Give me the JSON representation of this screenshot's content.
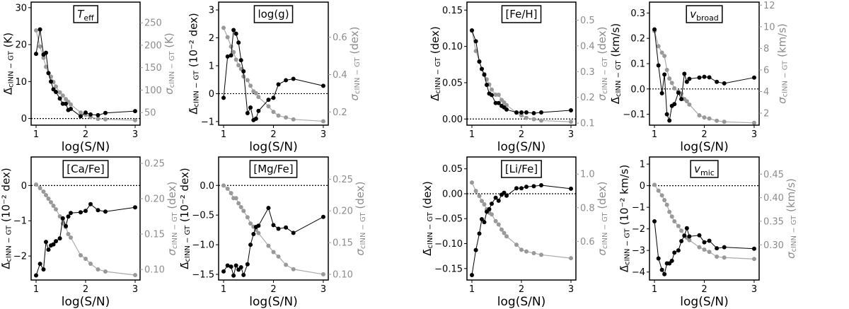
{
  "colors": {
    "primary": "#000000",
    "secondary": "#999999",
    "secondary_text": "#8c8c8c"
  },
  "chart_data": [
    {
      "type": "line",
      "title": {
        "text": "T",
        "sub": "eff",
        "italic": true
      },
      "xlabel": "log(S/N)",
      "xlim": [
        0.9,
        3.1
      ],
      "xticks": [
        1,
        2,
        3
      ],
      "ylabel_left": {
        "sym": "Δ̄",
        "sub": "cINN − GT",
        "unit": "(K)"
      },
      "ylabel_right": {
        "sym": "σ",
        "sub": "cINN − GT",
        "unit": "(K)"
      },
      "ylim_left": [
        -1.8,
        31.5
      ],
      "yticks_left": [
        0,
        10,
        20,
        30
      ],
      "ylim_right": [
        22,
        296
      ],
      "yticks_right": [
        50,
        100,
        150,
        200,
        250
      ],
      "zero_line": true,
      "grid": false,
      "x": [
        1,
        1.08,
        1.15,
        1.2,
        1.25,
        1.3,
        1.35,
        1.4,
        1.48,
        1.54,
        1.6,
        1.65,
        1.7,
        1.9,
        2,
        2.1,
        2.25,
        2.4,
        3
      ],
      "mean_bias": [
        17.5,
        24.1,
        17.3,
        17.8,
        12.3,
        10,
        7.9,
        7.2,
        5.4,
        4.0,
        4.0,
        2.3,
        2.6,
        0.6,
        1.6,
        1.1,
        0.9,
        1.5,
        2.0
      ],
      "sigma": [
        233,
        197,
        172,
        152,
        138,
        130,
        118,
        108,
        95,
        88,
        80,
        74,
        68,
        50,
        45,
        40,
        36,
        35,
        33
      ]
    },
    {
      "type": "line",
      "title": {
        "text": "log(g)",
        "sub": "",
        "italic": false
      },
      "xlabel": "log(S/N)",
      "xlim": [
        0.9,
        3.1
      ],
      "xticks": [
        1,
        2,
        3
      ],
      "ylabel_left": {
        "sym": "Δ̄",
        "sub": "cINN − GT",
        "unit": "(10⁻² dex)"
      },
      "ylabel_right": {
        "sym": "σ",
        "sub": "cINN − GT",
        "unit": "(dex)"
      },
      "ylim_left": [
        -1.13,
        3.28
      ],
      "yticks_left": [
        -1,
        0,
        1,
        2,
        3
      ],
      "ylim_right": [
        0.129,
        0.788
      ],
      "yticks_right": [
        0.2,
        0.4,
        0.6
      ],
      "zero_line": true,
      "grid": false,
      "x": [
        1,
        1.08,
        1.15,
        1.2,
        1.25,
        1.3,
        1.35,
        1.4,
        1.48,
        1.54,
        1.6,
        1.65,
        1.7,
        1.9,
        2,
        2.1,
        2.25,
        2.4,
        3
      ],
      "mean_bias": [
        -0.15,
        1.33,
        1.37,
        2.28,
        2.15,
        1.83,
        1.2,
        0.8,
        -0.7,
        -0.5,
        -0.95,
        -0.9,
        -0.62,
        -0.22,
        -0.15,
        0.33,
        0.48,
        0.53,
        0.28
      ],
      "sigma": [
        0.65,
        0.6,
        0.55,
        0.52,
        0.48,
        0.45,
        0.43,
        0.39,
        0.37,
        0.34,
        0.31,
        0.3,
        0.28,
        0.23,
        0.2,
        0.18,
        0.17,
        0.16,
        0.15
      ]
    },
    {
      "type": "line",
      "title": {
        "text": "[Fe/H]",
        "sub": "",
        "italic": false
      },
      "xlabel": "log(S/N)",
      "xlim": [
        0.9,
        3.1
      ],
      "xticks": [
        1,
        2,
        3
      ],
      "ylabel_left": {
        "sym": "Δ̄",
        "sub": "cINN − GT",
        "unit": "(dex)"
      },
      "ylabel_right": {
        "sym": "σ",
        "sub": "cINN − GT",
        "unit": "(dex)"
      },
      "ylim_left": [
        -0.0085,
        0.161
      ],
      "yticks_left": [
        0.0,
        0.05,
        0.1,
        0.15
      ],
      "ylim_right": [
        0.092,
        0.57
      ],
      "yticks_right": [
        0.1,
        0.2,
        0.3,
        0.4,
        0.5
      ],
      "zero_line": true,
      "grid": false,
      "x": [
        1,
        1.08,
        1.15,
        1.2,
        1.25,
        1.3,
        1.35,
        1.4,
        1.48,
        1.54,
        1.6,
        1.65,
        1.7,
        1.9,
        2,
        2.1,
        2.25,
        2.4,
        3
      ],
      "mean_bias": [
        0.122,
        0.107,
        0.079,
        0.069,
        0.061,
        0.047,
        0.035,
        0.033,
        0.022,
        0.022,
        0.018,
        0.016,
        0.013,
        0.009,
        0.009,
        0.009,
        0.008,
        0.009,
        0.012
      ],
      "sigma": [
        0.46,
        0.38,
        0.34,
        0.31,
        0.29,
        0.27,
        0.25,
        0.23,
        0.21,
        0.21,
        0.19,
        0.18,
        0.17,
        0.14,
        0.13,
        0.12,
        0.115,
        0.11,
        0.105
      ]
    },
    {
      "type": "line",
      "title": {
        "text": "v",
        "sub": "broad",
        "italic": true
      },
      "xlabel": "log(S/N)",
      "xlim": [
        0.9,
        3.1
      ],
      "xticks": [
        1,
        2,
        3
      ],
      "ylabel_left": {
        "sym": "Δ̄",
        "sub": "cINN − GT",
        "unit": "(km/s)"
      },
      "ylabel_right": {
        "sym": "σ",
        "sub": "cINN − GT",
        "unit": "(km/s)"
      },
      "ylim_left": [
        -0.143,
        0.343
      ],
      "yticks_left": [
        -0.1,
        0.0,
        0.1,
        0.2,
        0.3
      ],
      "ylim_right": [
        0.89,
        12.28
      ],
      "yticks_right": [
        2,
        4,
        6,
        8,
        10,
        12
      ],
      "zero_line": true,
      "grid": false,
      "x": [
        1,
        1.08,
        1.15,
        1.2,
        1.25,
        1.3,
        1.35,
        1.4,
        1.48,
        1.54,
        1.6,
        1.65,
        1.7,
        1.9,
        2,
        2.1,
        2.25,
        2.4,
        3
      ],
      "mean_bias": [
        0.235,
        0.093,
        -0.017,
        0.057,
        -0.1,
        -0.125,
        -0.067,
        -0.06,
        -0.015,
        -0.04,
        0.06,
        0.028,
        0.04,
        0.045,
        0.048,
        0.046,
        0.028,
        0.022,
        0.045
      ],
      "sigma": [
        9.6,
        8.2,
        7.6,
        7.3,
        6.0,
        5.2,
        4.8,
        4.3,
        4.0,
        3.8,
        3.3,
        3.1,
        2.8,
        1.8,
        1.6,
        1.5,
        1.3,
        1.2,
        1.1
      ]
    },
    {
      "type": "line",
      "title": {
        "text": "[Ca/Fe]",
        "sub": "",
        "italic": false
      },
      "xlabel": "log(S/N)",
      "xlim": [
        0.9,
        3.1
      ],
      "xticks": [
        1,
        2,
        3
      ],
      "ylabel_left": {
        "sym": "Δ̄",
        "sub": "cINN − GT",
        "unit": "(10⁻² dex)"
      },
      "ylabel_right": {
        "sym": "σ",
        "sub": "cINN − GT",
        "unit": "(dex)"
      },
      "ylim_left": [
        -2.68,
        0.81
      ],
      "yticks_left": [
        -2,
        -1,
        0
      ],
      "ylim_right": [
        0.085,
        0.259
      ],
      "yticks_right": [
        0.1,
        0.15,
        0.2,
        0.25
      ],
      "zero_line": true,
      "grid": false,
      "x": [
        1,
        1.08,
        1.15,
        1.2,
        1.25,
        1.3,
        1.35,
        1.4,
        1.48,
        1.54,
        1.6,
        1.65,
        1.7,
        1.9,
        2,
        2.1,
        2.25,
        2.4,
        3
      ],
      "mean_bias": [
        -2.55,
        -2.22,
        -2.38,
        -1.6,
        -1.82,
        -1.7,
        -1.67,
        -1.58,
        -1.5,
        -0.93,
        -1.15,
        -0.88,
        -0.78,
        -0.76,
        -0.72,
        -0.53,
        -0.7,
        -0.74,
        -0.62
      ],
      "sigma": [
        0.22,
        0.215,
        0.21,
        0.205,
        0.2,
        0.195,
        0.19,
        0.185,
        0.175,
        0.165,
        0.16,
        0.15,
        0.145,
        0.12,
        0.115,
        0.108,
        0.1,
        0.097,
        0.092
      ]
    },
    {
      "type": "line",
      "title": {
        "text": "[Mg/Fe]",
        "sub": "",
        "italic": false
      },
      "xlabel": "log(S/N)",
      "xlim": [
        0.9,
        3.1
      ],
      "xticks": [
        1,
        2,
        3
      ],
      "ylabel_left": {
        "sym": "Δ̄",
        "sub": "cINN − GT",
        "unit": "(10⁻² dex)"
      },
      "ylabel_right": {
        "sym": "σ",
        "sub": "cINN − GT",
        "unit": "(dex)"
      },
      "ylim_left": [
        -1.595,
        0.48
      ],
      "yticks_left": [
        -1.5,
        -1.0,
        -0.5,
        0.0
      ],
      "ylim_right": [
        0.091,
        0.285
      ],
      "yticks_right": [
        0.1,
        0.15,
        0.2,
        0.25
      ],
      "zero_line": true,
      "grid": false,
      "x": [
        1,
        1.08,
        1.15,
        1.2,
        1.25,
        1.3,
        1.35,
        1.4,
        1.48,
        1.54,
        1.6,
        1.65,
        1.7,
        1.9,
        2,
        2.1,
        2.25,
        2.4,
        3
      ],
      "mean_bias": [
        -1.45,
        -1.35,
        -1.37,
        -1.52,
        -1.35,
        -1.42,
        -1.38,
        -1.51,
        -1.33,
        -1.0,
        -0.82,
        -0.7,
        -0.68,
        -0.38,
        -0.67,
        -0.73,
        -0.71,
        -0.8,
        -0.53
      ],
      "sigma": [
        0.24,
        0.235,
        0.228,
        0.22,
        0.22,
        0.212,
        0.206,
        0.2,
        0.19,
        0.18,
        0.175,
        0.17,
        0.165,
        0.145,
        0.135,
        0.128,
        0.115,
        0.108,
        0.1
      ]
    },
    {
      "type": "line",
      "title": {
        "text": "[Li/Fe]",
        "sub": "",
        "italic": false
      },
      "xlabel": "log(S/N)",
      "xlim": [
        0.9,
        3.1
      ],
      "xticks": [
        1,
        2,
        3
      ],
      "ylabel_left": {
        "sym": "Δ̄",
        "sub": "cINN − GT",
        "unit": "(dex)"
      },
      "ylabel_right": {
        "sym": "σ",
        "sub": "cINN − GT",
        "unit": "(dex)"
      },
      "ylim_left": [
        -0.173,
        0.0737
      ],
      "yticks_left": [
        -0.15,
        -0.1,
        -0.05,
        0.0,
        0.05
      ],
      "ylim_right": [
        0.37,
        1.102
      ],
      "yticks_right": [
        0.6,
        0.8,
        1.0
      ],
      "zero_line": true,
      "grid": false,
      "x": [
        1,
        1.08,
        1.15,
        1.2,
        1.25,
        1.3,
        1.35,
        1.4,
        1.48,
        1.54,
        1.6,
        1.65,
        1.7,
        1.9,
        2,
        2.1,
        2.25,
        2.4,
        3
      ],
      "mean_bias": [
        -0.163,
        -0.113,
        -0.08,
        -0.051,
        -0.057,
        -0.036,
        -0.031,
        -0.02,
        -0.008,
        -0.014,
        -0.002,
        0.002,
        -0.004,
        0.011,
        0.011,
        0.014,
        0.015,
        0.017,
        0.01
      ],
      "sigma": [
        0.95,
        0.9,
        0.87,
        0.84,
        0.82,
        0.79,
        0.77,
        0.76,
        0.72,
        0.7,
        0.67,
        0.65,
        0.63,
        0.58,
        0.55,
        0.54,
        0.53,
        0.52,
        0.5
      ]
    },
    {
      "type": "line",
      "title": {
        "text": "v",
        "sub": "mic",
        "italic": true
      },
      "xlabel": "log(S/N)",
      "xlim": [
        0.9,
        3.1
      ],
      "xticks": [
        1,
        2,
        3
      ],
      "ylabel_left": {
        "sym": "Δ̄",
        "sub": "cINN − GT",
        "unit": "(10⁻² km/s)"
      },
      "ylabel_right": {
        "sym": "σ",
        "sub": "cINN − GT",
        "unit": "(km/s)"
      },
      "ylim_left": [
        -4.37,
        1.33
      ],
      "yticks_left": [
        -4,
        -3,
        -2,
        -1,
        0,
        1
      ],
      "ylim_right": [
        0.2254,
        0.4865
      ],
      "yticks_right": [
        0.3,
        0.35,
        0.4,
        0.45
      ],
      "zero_line": true,
      "grid": false,
      "x": [
        1,
        1.08,
        1.15,
        1.2,
        1.25,
        1.3,
        1.35,
        1.4,
        1.48,
        1.54,
        1.6,
        1.65,
        1.7,
        1.9,
        2,
        2.1,
        2.25,
        2.4,
        3
      ],
      "mean_bias": [
        -1.65,
        -3.37,
        -3.9,
        -4.1,
        -3.6,
        -3.6,
        -3.48,
        -3.1,
        -3.0,
        -2.57,
        -2.32,
        -1.97,
        -2.35,
        -2.3,
        -2.62,
        -2.55,
        -2.9,
        -2.85,
        -2.92
      ],
      "sigma": [
        0.4275,
        0.415,
        0.405,
        0.395,
        0.385,
        0.37,
        0.36,
        0.35,
        0.34,
        0.33,
        0.32,
        0.315,
        0.31,
        0.295,
        0.29,
        0.285,
        0.275,
        0.273,
        0.27
      ]
    }
  ]
}
